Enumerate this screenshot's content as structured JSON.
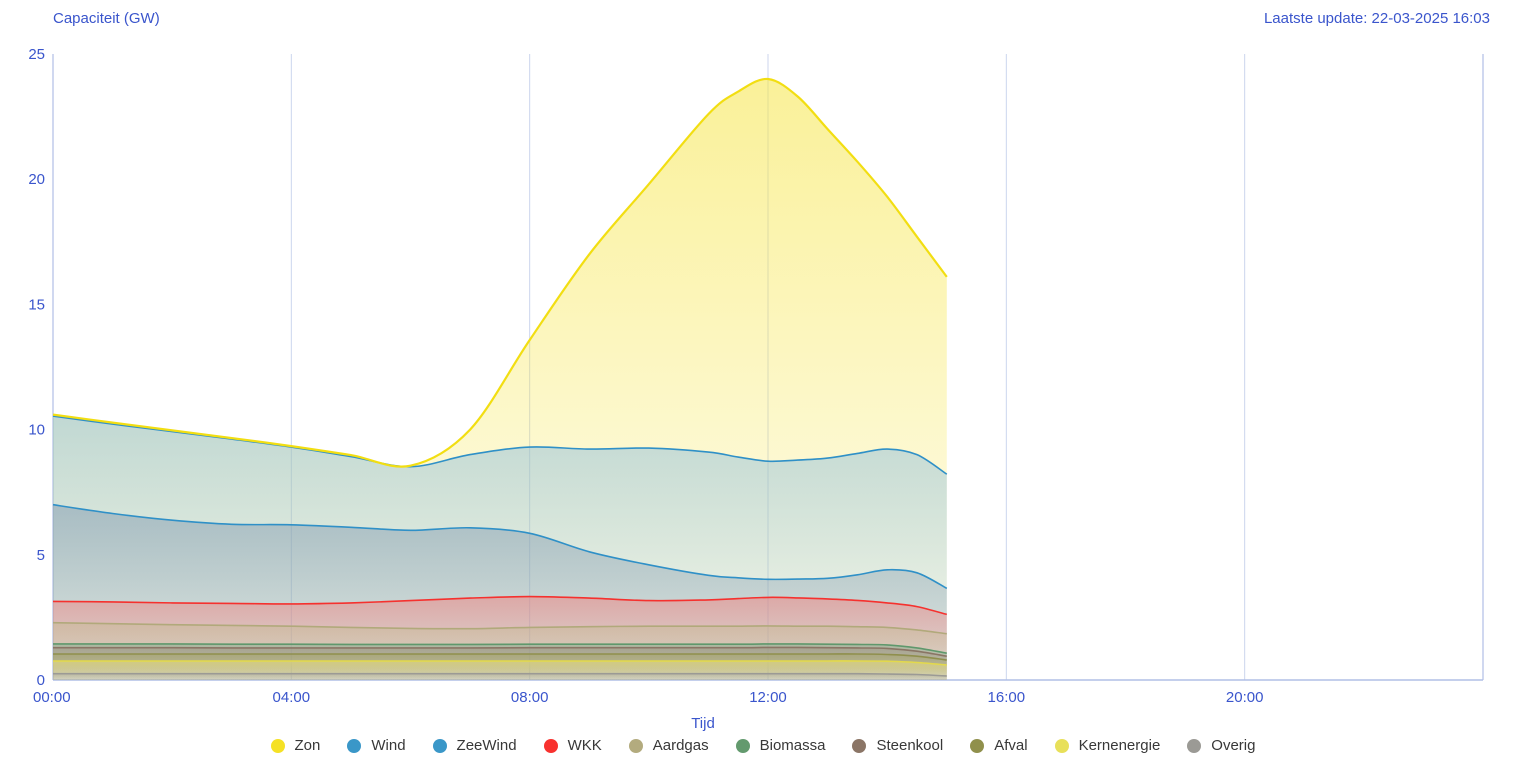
{
  "header": {
    "title": "Capaciteit (GW)",
    "last_update": "Laatste update: 22-03-2025 16:03"
  },
  "colors": {
    "axis_text": "#3a55cc",
    "grid_line": "#ccd6ee",
    "axis_line": "#b0bfe6",
    "legend_text": "#383838",
    "background": "#ffffff"
  },
  "axes": {
    "y": {
      "title": "Capaciteit (GW)",
      "min": 0,
      "max": 25,
      "ticks": [
        0,
        5,
        10,
        15,
        20,
        25
      ]
    },
    "x": {
      "title": "Tijd",
      "min_hour": 0,
      "max_hour": 24,
      "ticks": [
        {
          "hour": 0,
          "label": "00:00"
        },
        {
          "hour": 4,
          "label": "04:00"
        },
        {
          "hour": 8,
          "label": "08:00"
        },
        {
          "hour": 12,
          "label": "12:00"
        },
        {
          "hour": 16,
          "label": "16:00"
        },
        {
          "hour": 20,
          "label": "20:00"
        }
      ]
    }
  },
  "legend": [
    {
      "name": "Zon",
      "color": "#F5E125"
    },
    {
      "name": "Wind",
      "color": "#3A97C8"
    },
    {
      "name": "ZeeWind",
      "color": "#3A97C8"
    },
    {
      "name": "WKK",
      "color": "#F8312E"
    },
    {
      "name": "Aardgas",
      "color": "#B3AB7E"
    },
    {
      "name": "Biomassa",
      "color": "#639A6E"
    },
    {
      "name": "Steenkool",
      "color": "#8B7566"
    },
    {
      "name": "Afval",
      "color": "#90904C"
    },
    {
      "name": "Kernenergie",
      "color": "#E8E05A"
    },
    {
      "name": "Overig",
      "color": "#9B9A95"
    }
  ],
  "chart_data": {
    "type": "area",
    "stacked": true,
    "title": "Capaciteit (GW)",
    "xlabel": "Tijd",
    "ylabel": "Capaciteit (GW)",
    "ylim": [
      0,
      25
    ],
    "xlim_hours": [
      0,
      24
    ],
    "data_end_hour": 15,
    "grid": "vertical-only",
    "legend_position": "bottom-center",
    "x_hours": [
      0,
      1,
      2,
      3,
      4,
      5,
      6,
      7,
      8,
      9,
      10,
      11,
      11.5,
      12,
      12.5,
      13,
      13.5,
      14,
      14.5,
      15
    ],
    "series": [
      {
        "name": "Overig",
        "color": "#9B9A95",
        "fill": "#A9A8A2",
        "a0": 0.5,
        "a1": 0.06,
        "width": 1.6,
        "values": [
          0.25,
          0.25,
          0.25,
          0.25,
          0.25,
          0.25,
          0.25,
          0.25,
          0.25,
          0.25,
          0.25,
          0.25,
          0.25,
          0.25,
          0.25,
          0.25,
          0.25,
          0.24,
          0.22,
          0.16
        ]
      },
      {
        "name": "Kernenergie",
        "color": "#E3D94B",
        "fill": "#EDE37A",
        "a0": 0.55,
        "a1": 0.06,
        "width": 1.6,
        "values": [
          0.51,
          0.51,
          0.51,
          0.51,
          0.51,
          0.51,
          0.51,
          0.51,
          0.51,
          0.51,
          0.51,
          0.51,
          0.51,
          0.51,
          0.51,
          0.51,
          0.51,
          0.51,
          0.48,
          0.44
        ]
      },
      {
        "name": "Afval",
        "color": "#8F8F4D",
        "fill": "#A5A35C",
        "a0": 0.45,
        "a1": 0.05,
        "width": 1.6,
        "values": [
          0.28,
          0.28,
          0.28,
          0.28,
          0.28,
          0.28,
          0.28,
          0.28,
          0.28,
          0.28,
          0.28,
          0.28,
          0.28,
          0.28,
          0.28,
          0.28,
          0.28,
          0.27,
          0.25,
          0.2
        ]
      },
      {
        "name": "Steenkool",
        "color": "#8A7565",
        "fill": "#9F8B7B",
        "a0": 0.45,
        "a1": 0.05,
        "width": 1.6,
        "values": [
          0.25,
          0.25,
          0.25,
          0.24,
          0.24,
          0.24,
          0.24,
          0.24,
          0.25,
          0.25,
          0.25,
          0.25,
          0.25,
          0.26,
          0.26,
          0.25,
          0.24,
          0.24,
          0.2,
          0.15
        ]
      },
      {
        "name": "Biomassa",
        "color": "#5F986C",
        "fill": "#7FA98A",
        "a0": 0.5,
        "a1": 0.05,
        "width": 1.6,
        "values": [
          0.15,
          0.15,
          0.15,
          0.15,
          0.15,
          0.14,
          0.14,
          0.14,
          0.14,
          0.14,
          0.14,
          0.14,
          0.14,
          0.14,
          0.14,
          0.14,
          0.14,
          0.14,
          0.13,
          0.12
        ]
      },
      {
        "name": "Aardgas",
        "color": "#B1A97B",
        "fill": "#C2BA8E",
        "a0": 0.45,
        "a1": 0.06,
        "width": 1.6,
        "values": [
          0.85,
          0.81,
          0.77,
          0.75,
          0.72,
          0.68,
          0.64,
          0.63,
          0.67,
          0.7,
          0.72,
          0.72,
          0.72,
          0.72,
          0.71,
          0.72,
          0.71,
          0.7,
          0.72,
          0.78
        ]
      },
      {
        "name": "WKK",
        "color": "#F5312E",
        "fill": "#F47F7C",
        "a0": 0.5,
        "a1": 0.05,
        "width": 1.6,
        "values": [
          0.85,
          0.87,
          0.87,
          0.88,
          0.89,
          0.98,
          1.11,
          1.22,
          1.23,
          1.14,
          1.02,
          1.05,
          1.1,
          1.14,
          1.13,
          1.09,
          1.05,
          0.98,
          0.93,
          0.77
        ]
      },
      {
        "name": "ZeeWind",
        "color": "#2F90C7",
        "fill": "#7E97AE",
        "a0": 0.5,
        "a1": 0.14,
        "width": 1.6,
        "values": [
          3.86,
          3.53,
          3.3,
          3.16,
          3.16,
          3.02,
          2.81,
          2.81,
          2.53,
          1.85,
          1.43,
          0.98,
          0.83,
          0.72,
          0.75,
          0.82,
          1.02,
          1.32,
          1.35,
          1.04
        ]
      },
      {
        "name": "Wind",
        "color": "#2F90C7",
        "fill": "#85B9DD",
        "a0": 0.5,
        "a1": 0.06,
        "width": 1.6,
        "values": [
          3.54,
          3.57,
          3.54,
          3.4,
          3.1,
          2.82,
          2.54,
          2.92,
          3.44,
          4.1,
          4.66,
          4.92,
          4.82,
          4.72,
          4.75,
          4.8,
          4.85,
          4.82,
          4.72,
          4.56
        ]
      },
      {
        "name": "Zon",
        "color": "#F2DE12",
        "fill": "#F6E545",
        "a0": 0.55,
        "a1": 0.08,
        "width": 2.2,
        "values": [
          0.06,
          0.06,
          0.05,
          0.04,
          0.04,
          0.06,
          0.04,
          1.0,
          4.28,
          7.78,
          10.54,
          13.5,
          14.6,
          15.26,
          14.52,
          13.14,
          11.65,
          10.08,
          8.7,
          7.88
        ]
      }
    ]
  }
}
